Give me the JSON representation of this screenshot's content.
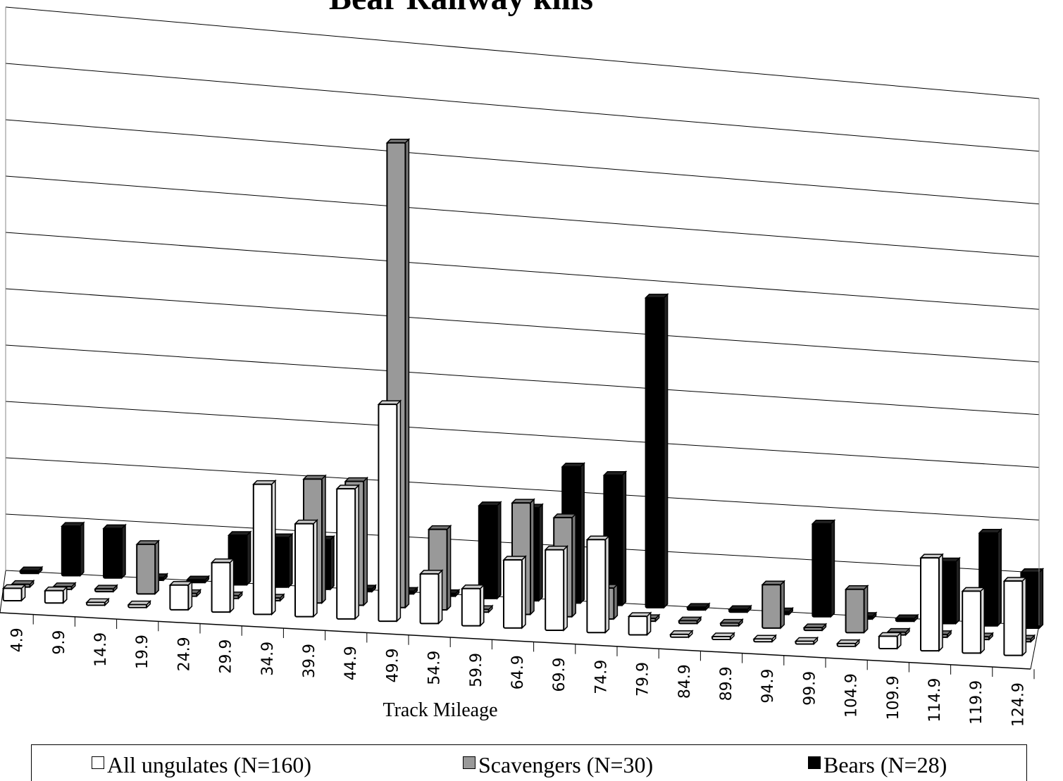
{
  "chart_data": {
    "type": "bar",
    "title": "Bear Railway kills",
    "xlabel": "Track Mileage",
    "ylabel": "",
    "ylim": [
      0,
      10
    ],
    "grid": true,
    "legend_position": "bottom",
    "categories": [
      "4.9",
      "9.9",
      "14.9",
      "19.9",
      "24.9",
      "29.9",
      "34.9",
      "39.9",
      "44.9",
      "49.9",
      "54.9",
      "59.9",
      "64.9",
      "69.9",
      "74.9",
      "79.9",
      "84.9",
      "89.9",
      "94.9",
      "99.9",
      "104.9",
      "109.9",
      "114.9",
      "119.9",
      "124.9"
    ],
    "series": [
      {
        "name": "All ungulates (N=160)",
        "color": "#ffffff",
        "values": [
          0.2,
          0.2,
          0,
          0,
          0.4,
          0.8,
          2.1,
          1.5,
          2.1,
          3.5,
          0.8,
          0.6,
          1.1,
          1.3,
          1.5,
          0.3,
          0,
          0,
          0,
          0,
          0,
          0.2,
          1.5,
          1.0,
          1.2
        ]
      },
      {
        "name": "Scavengers  (N=30)",
        "color": "#999999",
        "values": [
          0,
          0,
          0,
          0.8,
          0,
          0,
          0,
          2.0,
          2.0,
          7.5,
          1.3,
          0,
          1.8,
          1.6,
          0.5,
          0,
          0,
          0,
          0.7,
          0,
          0.7,
          0,
          0,
          0,
          0
        ]
      },
      {
        "name": "Bears (N=28)",
        "color": "#000000",
        "values": [
          0,
          0.8,
          0.8,
          0,
          0,
          0.8,
          0.8,
          0.8,
          0,
          0,
          0,
          1.5,
          1.5,
          2.2,
          2.1,
          5.0,
          0,
          0,
          0,
          1.5,
          0,
          0,
          1.0,
          1.5,
          0.9
        ]
      }
    ]
  }
}
